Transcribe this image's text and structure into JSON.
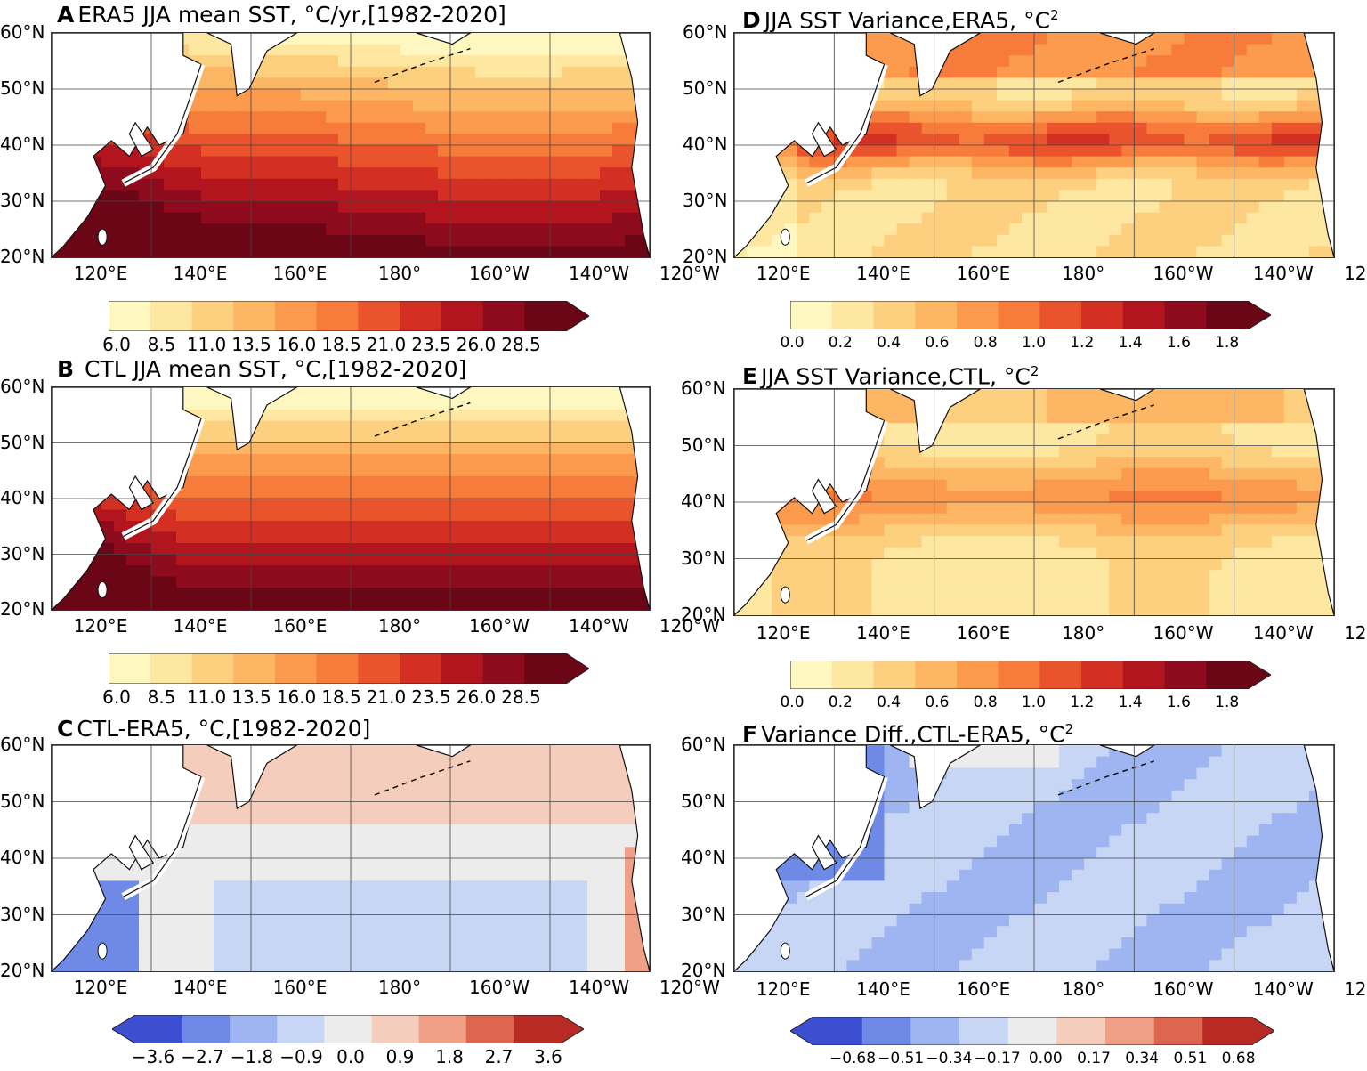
{
  "lon_labels": [
    "120°E",
    "140°E",
    "160°E",
    "180°",
    "160°W",
    "140°W",
    "120°W"
  ],
  "lat_labels": [
    "60°N",
    "50°N",
    "40°N",
    "30°N",
    "20°N"
  ],
  "panels": [
    {
      "id": "A",
      "letter": "A",
      "title": "ERA5 JJA mean SST,",
      "unit": "°C/yr,[1982-2020]",
      "sup": "",
      "field": "mean_era5",
      "ticks": [
        "6.0",
        "8.5",
        "11.0",
        "13.5",
        "16.0",
        "18.5",
        "21.0",
        "23.5",
        "26.0",
        "28.5"
      ]
    },
    {
      "id": "D",
      "letter": "D",
      "title": "JJA SST Variance,ERA5,",
      "unit": "°C",
      "sup": "2",
      "field": "var_era5",
      "ticks": [
        "0.0",
        "0.2",
        "0.4",
        "0.6",
        "0.8",
        "1.0",
        "1.2",
        "1.4",
        "1.6",
        "1.8"
      ]
    },
    {
      "id": "B",
      "letter": "B",
      "title": "CTL JJA mean SST,",
      "unit": "°C,[1982-2020]",
      "sup": "",
      "field": "mean_ctl",
      "ticks": [
        "6.0",
        "8.5",
        "11.0",
        "13.5",
        "16.0",
        "18.5",
        "21.0",
        "23.5",
        "26.0",
        "28.5"
      ]
    },
    {
      "id": "E",
      "letter": "E",
      "title": "JJA SST Variance,CTL,",
      "unit": "°C",
      "sup": "2",
      "field": "var_ctl",
      "ticks": [
        "0.0",
        "0.2",
        "0.4",
        "0.6",
        "0.8",
        "1.0",
        "1.2",
        "1.4",
        "1.6",
        "1.8"
      ]
    },
    {
      "id": "C",
      "letter": "C",
      "title": "CTL-ERA5,",
      "unit": "°C,[1982-2020]",
      "sup": "",
      "field": "diff_mean",
      "ticks": [
        "−3.6",
        "−2.7",
        "−1.8",
        "−0.9",
        "0.0",
        "0.9",
        "1.8",
        "2.7",
        "3.6"
      ]
    },
    {
      "id": "F",
      "letter": "F",
      "title": "Variance Diff.,CTL-ERA5,",
      "unit": "°C",
      "sup": "2",
      "field": "diff_var",
      "ticks": [
        "−0.68",
        "−0.51",
        "−0.34",
        "−0.17",
        "0.00",
        "0.17",
        "0.34",
        "0.51",
        "0.68"
      ]
    }
  ],
  "colors": {
    "seq": [
      "#fff7c0",
      "#fee7a0",
      "#fdd07f",
      "#fdb664",
      "#fc9a4d",
      "#f77b3b",
      "#e9542d",
      "#d32f22",
      "#b3151f",
      "#8e0b1e",
      "#6b0617"
    ],
    "div": [
      "#3c4fd0",
      "#6f8ae6",
      "#9fb5f2",
      "#c8d6f5",
      "#ececec",
      "#f5cdbd",
      "#efa087",
      "#dc6650",
      "#b82a24"
    ],
    "grid": "#444444",
    "coast": "#111111"
  }
}
